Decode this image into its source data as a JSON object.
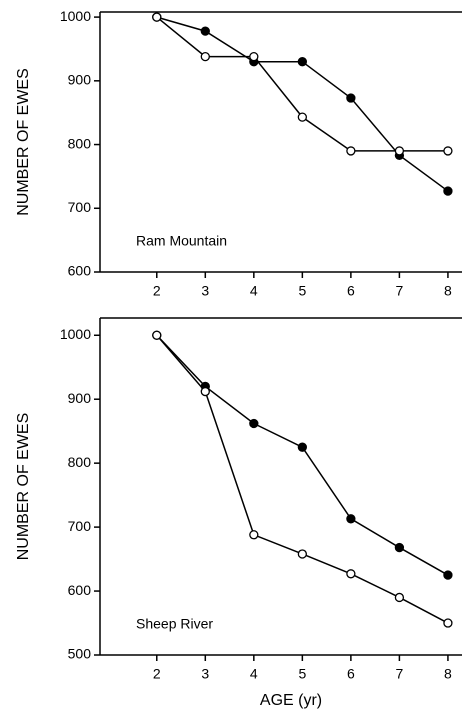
{
  "chart_data": [
    {
      "type": "line",
      "y_label": "NUMBER OF EWES",
      "annotation": "Ram Mountain",
      "x": [
        2,
        3,
        4,
        5,
        6,
        7,
        8
      ],
      "xlim": [
        0.83,
        8.29
      ],
      "xticks": [
        2,
        3,
        4,
        5,
        6,
        7,
        8
      ],
      "ylim": [
        600,
        1008
      ],
      "yticks": [
        600,
        700,
        800,
        900,
        1000
      ],
      "series": [
        {
          "color": "#000000",
          "marker_fill": "#000000",
          "values": [
            1000,
            978,
            930,
            930,
            873,
            783,
            727
          ]
        },
        {
          "color": "#000000",
          "marker_fill": "#ffffff",
          "values": [
            1000,
            938,
            938,
            843,
            790,
            790,
            790
          ]
        }
      ]
    },
    {
      "type": "line",
      "y_label": "NUMBER OF EWES",
      "x_label": "AGE (yr)",
      "annotation": "Sheep River",
      "x": [
        2,
        3,
        4,
        5,
        6,
        7,
        8
      ],
      "xlim": [
        0.83,
        8.29
      ],
      "xticks": [
        2,
        3,
        4,
        5,
        6,
        7,
        8
      ],
      "ylim": [
        500,
        1027
      ],
      "yticks": [
        500,
        600,
        700,
        800,
        900,
        1000
      ],
      "series": [
        {
          "color": "#000000",
          "marker_fill": "#000000",
          "values": [
            1000,
            920,
            862,
            825,
            713,
            668,
            625
          ]
        },
        {
          "color": "#000000",
          "marker_fill": "#ffffff",
          "values": [
            1000,
            912,
            688,
            658,
            627,
            590,
            550
          ]
        }
      ]
    }
  ]
}
